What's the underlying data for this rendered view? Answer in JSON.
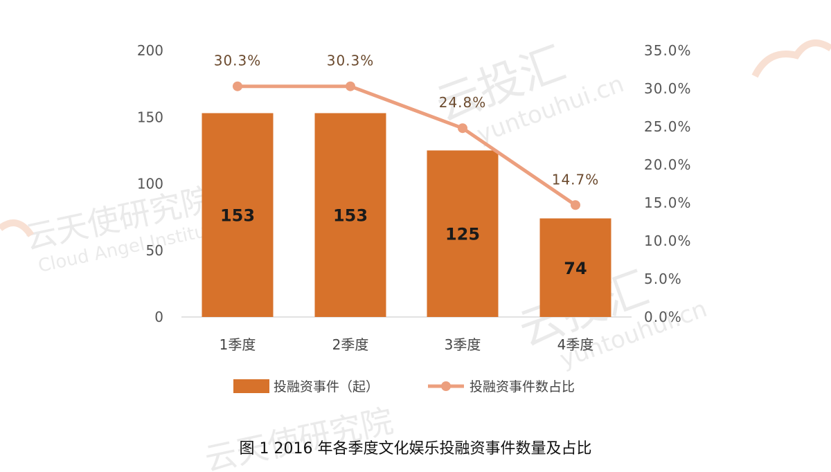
{
  "chart_data": {
    "type": "bar",
    "categories": [
      "1季度",
      "2季度",
      "3季度",
      "4季度"
    ],
    "series": [
      {
        "name": "投融资事件（起）",
        "kind": "bar",
        "axis": "left",
        "values": [
          153,
          153,
          125,
          74
        ],
        "labels": [
          "153",
          "153",
          "125",
          "74"
        ],
        "color": "#d7722b"
      },
      {
        "name": "投融资事件数占比",
        "kind": "line",
        "axis": "right",
        "values": [
          30.3,
          30.3,
          24.8,
          14.7
        ],
        "labels": [
          "30.3%",
          "30.3%",
          "24.8%",
          "14.7%"
        ],
        "color": "#ec9f7e"
      }
    ],
    "y_left": {
      "min": 0,
      "max": 200,
      "ticks": [
        "0",
        "50",
        "100",
        "150",
        "200"
      ]
    },
    "y_right": {
      "min": 0,
      "max": 35,
      "ticks": [
        "0.0%",
        "5.0%",
        "10.0%",
        "15.0%",
        "20.0%",
        "25.0%",
        "30.0%",
        "35.0%"
      ]
    },
    "grid": false,
    "legend": "bottom",
    "caption": "图 1   2016 年各季度文化娱乐投融资事件数量及占比"
  },
  "watermarks": [
    {
      "name": "云投汇 logo",
      "texts": [
        "云投汇",
        "yuntouhui.cn"
      ]
    },
    {
      "name": "云天使研究院 logo",
      "texts": [
        "云天使研究院",
        "Cloud Angel Institute"
      ]
    }
  ]
}
